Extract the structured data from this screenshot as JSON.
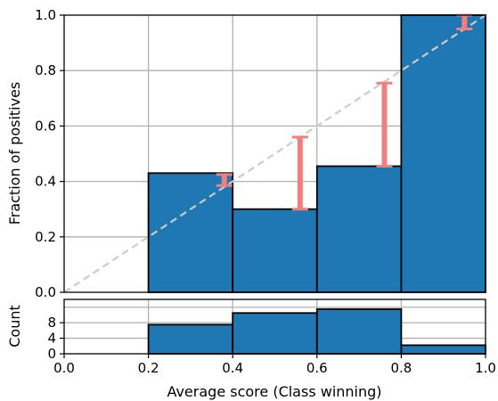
{
  "chart_data": [
    {
      "type": "bar",
      "panel": "top",
      "title": "",
      "xlabel": "",
      "ylabel": "Fraction of positives",
      "xlim": [
        0.0,
        1.0
      ],
      "ylim": [
        0.0,
        1.0
      ],
      "grid": true,
      "bins": [
        {
          "x0": 0.2,
          "x1": 0.4,
          "value": 0.43
        },
        {
          "x0": 0.4,
          "x1": 0.6,
          "value": 0.3
        },
        {
          "x0": 0.6,
          "x1": 0.8,
          "value": 0.455
        },
        {
          "x0": 0.8,
          "x1": 1.0,
          "value": 1.0
        }
      ],
      "error_bars": [
        {
          "x": 0.38,
          "low": 0.385,
          "high": 0.425
        },
        {
          "x": 0.56,
          "low": 0.3,
          "high": 0.56
        },
        {
          "x": 0.76,
          "low": 0.455,
          "high": 0.755
        },
        {
          "x": 0.95,
          "low": 0.95,
          "high": 1.0
        }
      ],
      "reference_line": {
        "from": [
          0.0,
          0.0
        ],
        "to": [
          1.0,
          1.0
        ],
        "style": "dashed",
        "color": "#cccccc"
      },
      "yticks": [
        {
          "value": 0.0,
          "label": "0.0"
        },
        {
          "value": 0.2,
          "label": "0.2"
        },
        {
          "value": 0.4,
          "label": "0.4"
        },
        {
          "value": 0.6,
          "label": "0.6"
        },
        {
          "value": 0.8,
          "label": "0.8"
        },
        {
          "value": 1.0,
          "label": "1.0"
        }
      ],
      "gridx": [
        0.2,
        0.4,
        0.6,
        0.8
      ],
      "colors": {
        "bar": "#1f77b4",
        "error": "#f08080",
        "grid": "#b0b0b0"
      }
    },
    {
      "type": "bar",
      "panel": "bottom",
      "title": "",
      "xlabel": "Average score (Class winning)",
      "ylabel": "Count",
      "xlim": [
        0.0,
        1.0
      ],
      "ylim": [
        0,
        14
      ],
      "grid": true,
      "bins": [
        {
          "x0": 0.2,
          "x1": 0.4,
          "value": 7.5
        },
        {
          "x0": 0.4,
          "x1": 0.6,
          "value": 10.5
        },
        {
          "x0": 0.6,
          "x1": 0.8,
          "value": 11.5
        },
        {
          "x0": 0.8,
          "x1": 1.0,
          "value": 2.2
        }
      ],
      "yticks": [
        {
          "value": 0,
          "label": "0"
        },
        {
          "value": 4,
          "label": "4"
        },
        {
          "value": 8,
          "label": "8"
        }
      ],
      "ygrid": [
        4,
        8,
        12
      ],
      "xticks": [
        {
          "value": 0.0,
          "label": "0.0"
        },
        {
          "value": 0.2,
          "label": "0.2"
        },
        {
          "value": 0.4,
          "label": "0.4"
        },
        {
          "value": 0.6,
          "label": "0.6"
        },
        {
          "value": 0.8,
          "label": "0.8"
        },
        {
          "value": 1.0,
          "label": "1.0"
        }
      ],
      "gridx": [
        0.2,
        0.4,
        0.6,
        0.8
      ],
      "colors": {
        "bar": "#1f77b4",
        "grid": "#b0b0b0"
      }
    }
  ]
}
